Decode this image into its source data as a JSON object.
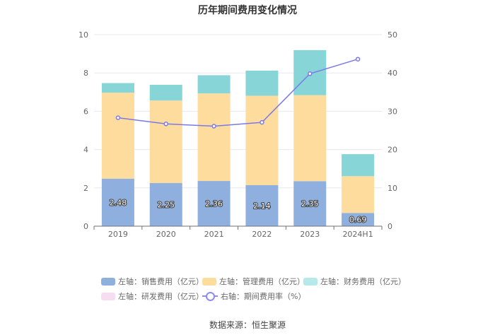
{
  "title": "历年期间费用变化情况",
  "source": "数据来源：恒生聚源",
  "colors": {
    "sales": "#8fb0de",
    "admin": "#fedc9e",
    "finance": "#87d5d7",
    "rnd": "#f4d6ec",
    "rate": "#7b79e8",
    "legend_finance": "#b7e8ea",
    "legend_rnd": "#f6ddf0"
  },
  "legend": [
    {
      "label": "左轴：销售费用（亿元）",
      "color_key": "sales",
      "kind": "box"
    },
    {
      "label": "左轴：管理费用（亿元）",
      "color_key": "admin",
      "kind": "box"
    },
    {
      "label": "左轴：财务费用（亿元）",
      "color_key": "legend_finance",
      "kind": "box"
    },
    {
      "label": "左轴：研发费用（亿元）",
      "color_key": "legend_rnd",
      "kind": "box"
    },
    {
      "label": "右轴：期间费用率（%）",
      "color_key": "rate",
      "kind": "line"
    }
  ],
  "chart_data": {
    "type": "bar",
    "stacked": true,
    "categories": [
      "2019",
      "2020",
      "2021",
      "2022",
      "2023",
      "2024H1"
    ],
    "series": [
      {
        "name": "左轴：销售费用（亿元）",
        "axis": "left",
        "values": [
          2.48,
          2.25,
          2.36,
          2.14,
          2.35,
          0.69
        ],
        "labels": [
          "2.48",
          "2.25",
          "2.36",
          "2.14",
          "2.35",
          "0.69"
        ]
      },
      {
        "name": "左轴：管理费用（亿元）",
        "axis": "left",
        "values": [
          4.49,
          4.31,
          4.57,
          4.67,
          4.49,
          1.92
        ]
      },
      {
        "name": "左轴：财务费用（亿元）",
        "axis": "left",
        "values": [
          0.5,
          0.82,
          0.95,
          1.31,
          2.35,
          1.15
        ]
      },
      {
        "name": "左轴：研发费用（亿元）",
        "axis": "left",
        "values": [
          0,
          0,
          0,
          0,
          0,
          0
        ]
      },
      {
        "name": "右轴：期间费用率（%）",
        "axis": "right",
        "type": "line",
        "values": [
          28.3,
          26.7,
          26.1,
          27.1,
          39.8,
          43.6
        ]
      }
    ],
    "left_axis": {
      "min": 0,
      "max": 10,
      "ticks": [
        "0",
        "2",
        "4",
        "6",
        "8",
        "10"
      ]
    },
    "right_axis": {
      "min": 0,
      "max": 50,
      "ticks": [
        "0",
        "10",
        "20",
        "30",
        "40",
        "50"
      ]
    },
    "grid": true,
    "legend_position": "bottom"
  }
}
